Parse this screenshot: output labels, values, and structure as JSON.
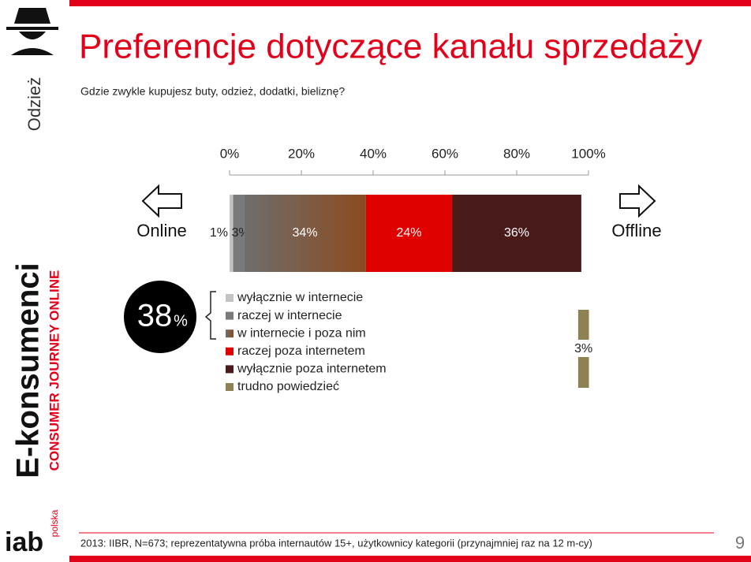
{
  "sidebar": {
    "category": "Odzież",
    "brand": "E-konsumenci",
    "brand_sub": "CONSUMER JOURNEY ONLINE",
    "logo": "iab",
    "logo_sub": "polska"
  },
  "chart_data": {
    "type": "stacked-bar",
    "title": "Preferencje dotyczące kanału sprzedaży",
    "subtitle": "Gdzie zwykle kupujesz buty, odzież, dodatki, bieliznę?",
    "categories": [
      null
    ],
    "series": [
      {
        "name": "wyłącznie w internecie",
        "color": "#c3c3c3",
        "values": [
          1
        ],
        "value_labels": [
          "1%"
        ]
      },
      {
        "name": "raczej w internecie",
        "color": "#7a7a7a",
        "values": [
          3
        ],
        "value_labels": [
          "3%"
        ]
      },
      {
        "name": "w internecie i poza nim",
        "color": "#8c4a1f",
        "values": [
          34
        ],
        "value_labels": [
          "34%"
        ]
      },
      {
        "name": "raczej poza internetem",
        "color": "#e00000",
        "values": [
          24
        ],
        "value_labels": [
          "24%"
        ]
      },
      {
        "name": "wyłącznie poza internetem",
        "color": "#4a1a1a",
        "values": [
          36
        ],
        "value_labels": [
          "36%"
        ]
      },
      {
        "name": "trudno powiedzieć",
        "color": "#8e8152",
        "values": [
          3
        ],
        "value_labels": [
          "3%"
        ]
      }
    ],
    "xlim": [
      0,
      100
    ],
    "xticks": [
      {
        "value": 0,
        "label": "0%"
      },
      {
        "value": 20,
        "label": "20%"
      },
      {
        "value": 40,
        "label": "40%"
      },
      {
        "value": 60,
        "label": "60%"
      },
      {
        "value": 80,
        "label": "80%"
      },
      {
        "value": 100,
        "label": "100%"
      }
    ],
    "left_label": "Online",
    "right_label": "Offline",
    "highlight_number": "38",
    "highlight_unit": "%"
  },
  "footer": {
    "note": "2013: IIBR, N=673; reprezentatywna próba internautów 15+, użytkownicy kategorii (przynajmniej raz na 12 m-cy)",
    "page": "9"
  }
}
